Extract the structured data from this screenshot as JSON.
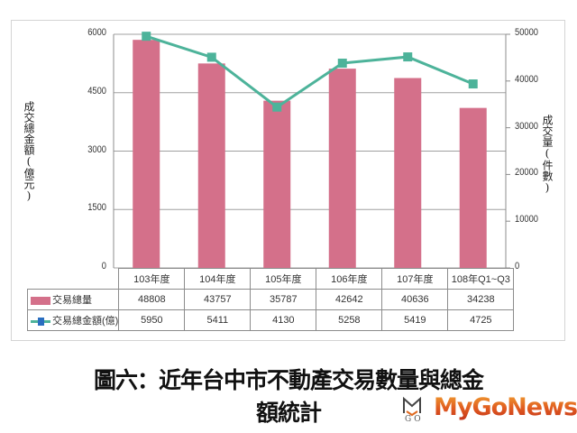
{
  "chart_data": {
    "type": "bar+line",
    "title": "圖六：近年台中市不動產交易數量與總金額統計",
    "categories": [
      "103年度",
      "104年度",
      "105年度",
      "106年度",
      "107年度",
      "108年Q1~Q3"
    ],
    "series": [
      {
        "name": "交易總量",
        "type": "bar",
        "axis": "right",
        "color": "#d4708a",
        "values": [
          48808,
          43757,
          35787,
          42642,
          40636,
          34238
        ]
      },
      {
        "name": "交易總金額(億)",
        "type": "line",
        "axis": "left",
        "color": "#4db39a",
        "marker_color": "#4db39a",
        "values": [
          5950,
          5411,
          4130,
          5258,
          5419,
          4725
        ]
      }
    ],
    "left_axis": {
      "label": "成交總金額(億元)",
      "range": [
        0,
        6000
      ],
      "ticks": [
        "6000",
        "4500",
        "3000",
        "1500",
        "0"
      ]
    },
    "right_axis": {
      "label": "成交量(件數)",
      "range": [
        0,
        50000
      ],
      "ticks": [
        "50000",
        "40000",
        "30000",
        "20000",
        "10000",
        "0"
      ]
    },
    "grid": true,
    "legend_position": "data-table"
  },
  "table": {
    "rows": [
      {
        "label": "交易總量",
        "values": [
          "48808",
          "43757",
          "35787",
          "42642",
          "40636",
          "34238"
        ]
      },
      {
        "label": "交易總金額(億)",
        "values": [
          "5950",
          "5411",
          "4130",
          "5258",
          "5419",
          "4725"
        ]
      }
    ]
  },
  "caption": "圖六：近年台中市不動產交易數量與總金額統計",
  "watermark": {
    "brand": "MyGoNews",
    "mark": "GO"
  }
}
